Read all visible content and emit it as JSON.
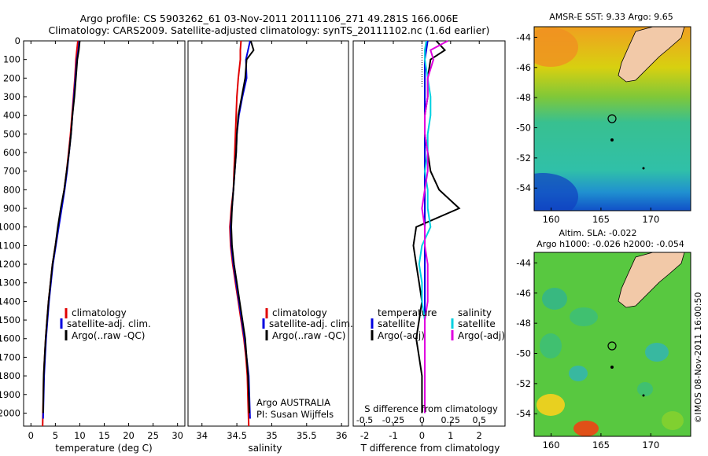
{
  "header": {
    "title_line1": "Argo profile: CS 5903262_61 03-Nov-2011 20111106_271 49.281S 166.006E",
    "title_line2": "Climatology: CARS2009. Satellite-adjusted climatology: synTS_20111102.nc (1.6d earlier)"
  },
  "depth_ticks": [
    "0",
    "100",
    "200",
    "300",
    "400",
    "500",
    "600",
    "700",
    "800",
    "900",
    "1000",
    "1100",
    "1200",
    "1300",
    "1400",
    "1500",
    "1600",
    "1700",
    "1800",
    "1900",
    "2000"
  ],
  "legend_profiles": {
    "climatology": "climatology",
    "satellite": "satellite-adj. clim.",
    "argo": "Argo(..raw -QC)"
  },
  "legend_diff": {
    "temperature": "temperature",
    "salinity": "salinity",
    "satellite": "satellite",
    "argo": "Argo(-adj)"
  },
  "argo_note": {
    "line1": "Argo AUSTRALIA",
    "line2": "PI: Susan Wijffels"
  },
  "colors": {
    "climatology": "#e00000",
    "satellite": "#0000e0",
    "argo": "#000000",
    "sal_sat": "#00d0e0",
    "sal_argo": "#e000e0",
    "land": "#f2c9a8"
  },
  "chart_data": [
    {
      "type": "line",
      "xlabel": "temperature (deg C)",
      "xticks": [
        "0",
        "5",
        "10",
        "15",
        "20",
        "25",
        "30"
      ],
      "xlim": [
        -1.5,
        31.5
      ],
      "ylim": [
        2070,
        0
      ],
      "series": [
        {
          "name": "climatology",
          "x": [
            9.6,
            9.4,
            9.2,
            9.0,
            8.7,
            8.4,
            8.1,
            7.7,
            7.3,
            6.8,
            6.2,
            5.6,
            5.0,
            4.4,
            4.0,
            3.6,
            3.3,
            3.0,
            2.8,
            2.6,
            2.4
          ],
          "y": [
            0,
            50,
            100,
            200,
            300,
            400,
            500,
            600,
            700,
            800,
            900,
            1000,
            1100,
            1200,
            1300,
            1400,
            1500,
            1600,
            1700,
            1800,
            2070
          ]
        },
        {
          "name": "satellite-adj. clim.",
          "x": [
            9.9,
            9.7,
            9.4,
            9.1,
            8.8,
            8.5,
            8.2,
            7.8,
            7.4,
            6.9,
            6.3,
            5.7,
            5.1,
            4.5,
            4.1,
            3.7,
            3.4,
            3.1,
            2.9,
            2.7,
            2.5
          ],
          "y": [
            0,
            50,
            100,
            200,
            300,
            400,
            500,
            600,
            700,
            800,
            900,
            1000,
            1100,
            1200,
            1300,
            1400,
            1500,
            1600,
            1700,
            1800,
            2030
          ]
        },
        {
          "name": "Argo(..raw -QC)",
          "x": [
            10.0,
            9.8,
            9.5,
            9.2,
            8.9,
            8.5,
            8.2,
            7.8,
            7.3,
            6.8,
            6.1,
            5.5,
            5.0,
            4.4,
            4.0,
            3.6,
            3.3,
            3.0,
            2.8,
            2.6,
            2.5
          ],
          "y": [
            0,
            50,
            100,
            200,
            300,
            400,
            500,
            600,
            700,
            800,
            900,
            1000,
            1100,
            1200,
            1300,
            1400,
            1500,
            1600,
            1700,
            1800,
            2000
          ]
        }
      ]
    },
    {
      "type": "line",
      "xlabel": "salinity",
      "xticks": [
        "34",
        "34.5",
        "35",
        "35.5",
        "36"
      ],
      "xlim": [
        33.8,
        36.1
      ],
      "ylim": [
        2070,
        0
      ],
      "series": [
        {
          "name": "climatology",
          "x": [
            34.56,
            34.55,
            34.55,
            34.52,
            34.5,
            34.49,
            34.48,
            34.47,
            34.46,
            34.45,
            34.42,
            34.4,
            34.41,
            34.44,
            34.48,
            34.52,
            34.56,
            34.6,
            34.63,
            34.65,
            34.67
          ],
          "y": [
            0,
            50,
            100,
            200,
            300,
            400,
            500,
            600,
            700,
            800,
            900,
            1000,
            1100,
            1200,
            1300,
            1400,
            1500,
            1600,
            1700,
            1800,
            2070
          ]
        },
        {
          "name": "satellite-adj. clim.",
          "x": [
            34.69,
            34.66,
            34.63,
            34.64,
            34.58,
            34.53,
            34.5,
            34.49,
            34.47,
            34.45,
            34.43,
            34.41,
            34.42,
            34.45,
            34.49,
            34.53,
            34.57,
            34.61,
            34.64,
            34.67,
            34.69
          ],
          "y": [
            0,
            50,
            100,
            200,
            300,
            400,
            500,
            600,
            700,
            800,
            900,
            1000,
            1100,
            1200,
            1300,
            1400,
            1500,
            1600,
            1700,
            1800,
            2030
          ]
        },
        {
          "name": "Argo(..raw -QC)",
          "x": [
            34.7,
            34.74,
            34.64,
            34.62,
            34.57,
            34.52,
            34.5,
            34.49,
            34.47,
            34.45,
            34.43,
            34.42,
            34.43,
            34.46,
            34.5,
            34.54,
            34.58,
            34.62,
            34.64,
            34.66,
            34.68
          ],
          "y": [
            0,
            50,
            100,
            200,
            300,
            400,
            500,
            600,
            700,
            800,
            900,
            1000,
            1100,
            1200,
            1300,
            1400,
            1500,
            1600,
            1700,
            1800,
            2000
          ]
        }
      ],
      "annotations": [
        "Argo AUSTRALIA",
        "PI: Susan Wijffels"
      ]
    },
    {
      "type": "line",
      "xlabel": "T difference from climatology",
      "xlabel_top": "S difference from climatology",
      "xticks_T": [
        "-2",
        "-1",
        "0",
        "1",
        "2"
      ],
      "xticks_S": [
        "-0.5",
        "-0.25",
        "0",
        "0.25",
        "0.5"
      ],
      "xlim": [
        -2.4,
        2.9
      ],
      "ylim": [
        2070,
        0
      ],
      "series": [
        {
          "name": "temperature satellite",
          "x": [
            0.2,
            0.15,
            0.1,
            0.1,
            0.1,
            0.1,
            0.1,
            0.1,
            0.1,
            0.1,
            0.1,
            0.1,
            0.1,
            0.1,
            0.1,
            0.1,
            0.1,
            0.1,
            0.1,
            0.1,
            0.1
          ],
          "y": [
            0,
            50,
            100,
            200,
            300,
            400,
            500,
            600,
            700,
            800,
            900,
            1000,
            1100,
            1200,
            1300,
            1400,
            1500,
            1600,
            1700,
            1800,
            2000
          ]
        },
        {
          "name": "temperature Argo(-adj)",
          "x": [
            0.5,
            0.8,
            0.3,
            0.2,
            0.2,
            0.1,
            0.1,
            0.2,
            0.3,
            0.6,
            1.3,
            -0.2,
            -0.3,
            -0.2,
            -0.1,
            0.0,
            -0.1,
            -0.2,
            -0.1,
            0.0,
            0.0
          ],
          "y": [
            0,
            50,
            100,
            200,
            300,
            400,
            500,
            600,
            700,
            800,
            900,
            1000,
            1100,
            1200,
            1300,
            1400,
            1500,
            1600,
            1700,
            1800,
            2000
          ]
        },
        {
          "name": "salinity satellite",
          "x": [
            0.15,
            0.1,
            0.1,
            0.2,
            0.3,
            0.3,
            0.2,
            0.2,
            0.1,
            0.2,
            0.2,
            0.3,
            0.0,
            -0.1,
            0.0,
            0.0,
            0.1,
            0.1,
            0.1,
            0.1,
            0.1
          ],
          "y": [
            0,
            50,
            100,
            200,
            300,
            400,
            500,
            600,
            700,
            800,
            900,
            1000,
            1100,
            1200,
            1300,
            1400,
            1500,
            1600,
            1700,
            1800,
            2000
          ]
        },
        {
          "name": "salinity Argo(-adj)",
          "x": [
            0.9,
            0.3,
            0.4,
            0.2,
            0.2,
            0.1,
            0.1,
            0.2,
            0.2,
            0.1,
            0.0,
            0.1,
            0.1,
            0.2,
            0.2,
            0.2,
            0.1,
            0.1,
            0.1,
            0.1,
            0.1
          ],
          "y": [
            0,
            50,
            100,
            200,
            300,
            400,
            500,
            600,
            700,
            800,
            900,
            1000,
            1100,
            1200,
            1300,
            1400,
            1500,
            1600,
            1700,
            1800,
            2000
          ]
        }
      ]
    },
    {
      "type": "heatmap",
      "title": "AMSR-E SST: 9.33 Argo: 9.65",
      "xticks": [
        "160",
        "165",
        "170"
      ],
      "yticks": [
        "-44",
        "-46",
        "-48",
        "-50",
        "-52",
        "-54"
      ],
      "xlim": [
        158.3,
        174.0
      ],
      "ylim": [
        -55.5,
        -43.3
      ]
    },
    {
      "type": "heatmap",
      "title": "Altim. SLA: -0.022",
      "subtitle": "Argo h1000: -0.026 h2000: -0.054",
      "xticks": [
        "160",
        "165",
        "170"
      ],
      "yticks": [
        "-44",
        "-46",
        "-48",
        "-50",
        "-52",
        "-54"
      ],
      "xlim": [
        158.3,
        174.0
      ],
      "ylim": [
        -55.5,
        -43.3
      ]
    }
  ],
  "side_note": "©IMOS 08-Nov-2011 16:00:50"
}
